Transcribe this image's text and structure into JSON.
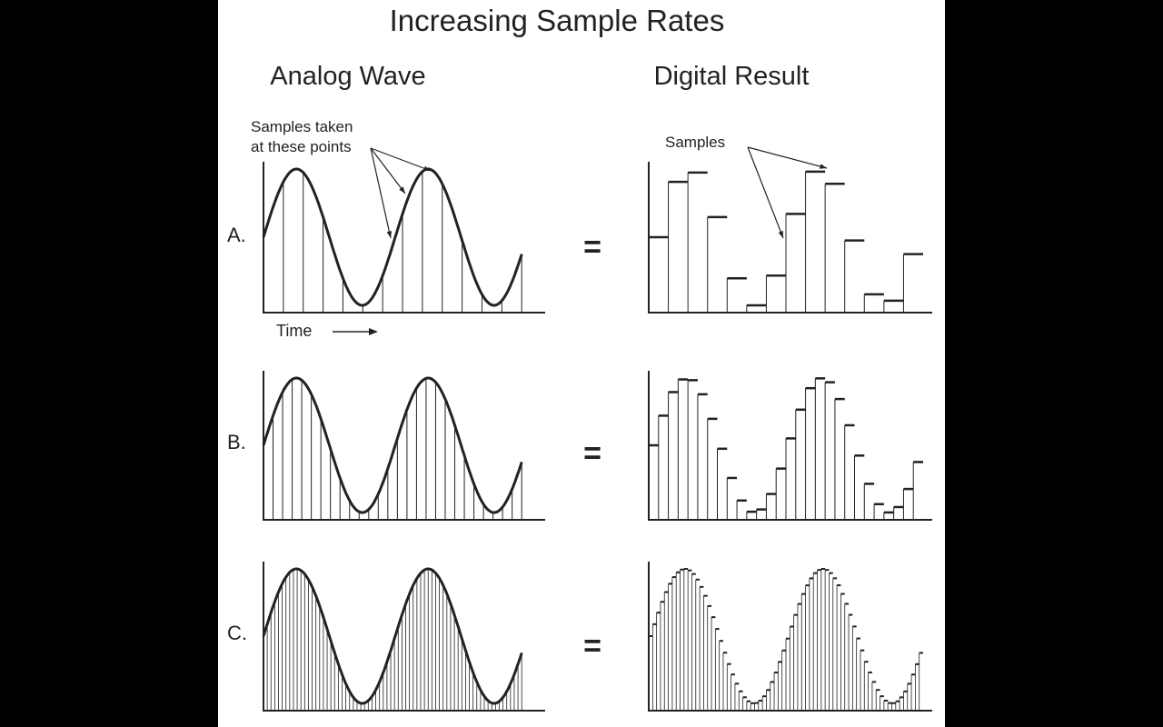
{
  "title": "Increasing Sample Rates",
  "left_heading": "Analog Wave",
  "right_heading": "Digital Result",
  "analog_annotation": [
    "Samples taken",
    "at these points"
  ],
  "digital_annotation": "Samples",
  "time_label": "Time",
  "equals_sign": "=",
  "wave": {
    "cycles": 2,
    "samples_shown_as": "vertical lines / stepped bars"
  },
  "rows": [
    {
      "label": "A.",
      "samples": 14
    },
    {
      "label": "B.",
      "samples": 28
    },
    {
      "label": "C.",
      "samples": 70
    }
  ],
  "colors": {
    "background": "#ffffff",
    "ink": "#222222",
    "side_bars": "#000000"
  }
}
